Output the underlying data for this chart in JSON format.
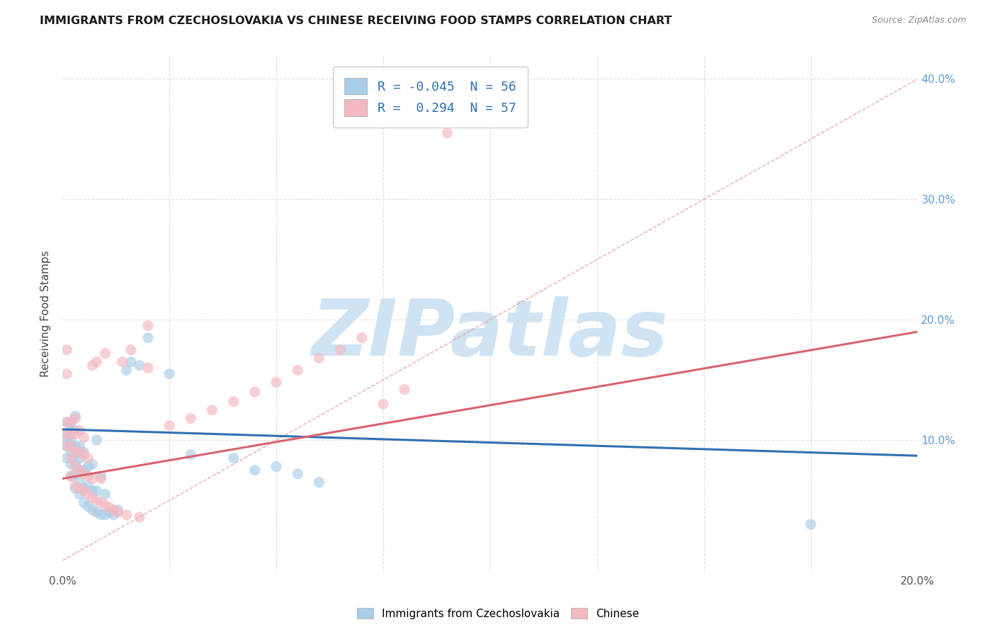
{
  "title": "IMMIGRANTS FROM CZECHOSLOVAKIA VS CHINESE RECEIVING FOOD STAMPS CORRELATION CHART",
  "source": "Source: ZipAtlas.com",
  "ylabel": "Receiving Food Stamps",
  "xlim": [
    0.0,
    0.2
  ],
  "ylim": [
    -0.01,
    0.42
  ],
  "xticks": [
    0.0,
    0.025,
    0.05,
    0.075,
    0.1,
    0.125,
    0.15,
    0.175,
    0.2
  ],
  "yticks_right": [
    0.1,
    0.2,
    0.3,
    0.4
  ],
  "legend_labels": [
    "Immigrants from Czechoslovakia",
    "Chinese"
  ],
  "legend_r": [
    -0.045,
    0.294
  ],
  "legend_n": [
    56,
    57
  ],
  "blue_color": "#a8cde8",
  "pink_color": "#f4b8c1",
  "blue_line_color": "#3070b0",
  "pink_line_color": "#d9626e",
  "ref_line_color": "#e8a0a8",
  "legend_text_color": "#3070b0",
  "right_axis_color": "#5b9bd5",
  "watermark_color": "#c8dff0",
  "grid_color": "#e0e0e0",
  "background_color": "#ffffff",
  "blue_trend_y0": 0.109,
  "blue_trend_y1": 0.087,
  "pink_trend_y0": 0.068,
  "pink_trend_y1": 0.19,
  "ref_line_x": [
    0.0,
    0.2
  ],
  "ref_line_y": [
    0.0,
    0.4
  ],
  "blue_scatter_x": [
    0.001,
    0.001,
    0.001,
    0.001,
    0.001,
    0.002,
    0.002,
    0.002,
    0.002,
    0.002,
    0.002,
    0.002,
    0.003,
    0.003,
    0.003,
    0.003,
    0.003,
    0.003,
    0.003,
    0.004,
    0.004,
    0.004,
    0.004,
    0.004,
    0.005,
    0.005,
    0.005,
    0.005,
    0.006,
    0.006,
    0.006,
    0.007,
    0.007,
    0.007,
    0.008,
    0.008,
    0.008,
    0.009,
    0.009,
    0.01,
    0.01,
    0.011,
    0.012,
    0.013,
    0.015,
    0.016,
    0.018,
    0.02,
    0.025,
    0.03,
    0.04,
    0.045,
    0.05,
    0.055,
    0.06,
    0.175
  ],
  "blue_scatter_y": [
    0.085,
    0.095,
    0.1,
    0.105,
    0.115,
    0.07,
    0.08,
    0.09,
    0.095,
    0.1,
    0.108,
    0.115,
    0.06,
    0.072,
    0.08,
    0.088,
    0.095,
    0.108,
    0.12,
    0.055,
    0.065,
    0.075,
    0.085,
    0.095,
    0.048,
    0.06,
    0.075,
    0.09,
    0.045,
    0.062,
    0.078,
    0.042,
    0.058,
    0.08,
    0.04,
    0.058,
    0.1,
    0.038,
    0.07,
    0.038,
    0.055,
    0.04,
    0.038,
    0.042,
    0.158,
    0.165,
    0.162,
    0.185,
    0.155,
    0.088,
    0.085,
    0.075,
    0.078,
    0.072,
    0.065,
    0.03
  ],
  "pink_scatter_x": [
    0.001,
    0.001,
    0.001,
    0.001,
    0.001,
    0.002,
    0.002,
    0.002,
    0.002,
    0.002,
    0.003,
    0.003,
    0.003,
    0.003,
    0.003,
    0.004,
    0.004,
    0.004,
    0.004,
    0.005,
    0.005,
    0.005,
    0.005,
    0.006,
    0.006,
    0.006,
    0.007,
    0.007,
    0.007,
    0.008,
    0.008,
    0.009,
    0.009,
    0.01,
    0.01,
    0.011,
    0.012,
    0.013,
    0.014,
    0.015,
    0.016,
    0.018,
    0.02,
    0.02,
    0.025,
    0.03,
    0.035,
    0.04,
    0.045,
    0.05,
    0.055,
    0.06,
    0.065,
    0.07,
    0.075,
    0.08,
    0.09
  ],
  "pink_scatter_y": [
    0.095,
    0.105,
    0.115,
    0.155,
    0.175,
    0.07,
    0.085,
    0.095,
    0.105,
    0.115,
    0.062,
    0.078,
    0.09,
    0.105,
    0.118,
    0.06,
    0.075,
    0.09,
    0.108,
    0.058,
    0.072,
    0.088,
    0.102,
    0.055,
    0.07,
    0.085,
    0.052,
    0.068,
    0.162,
    0.05,
    0.165,
    0.048,
    0.068,
    0.046,
    0.172,
    0.044,
    0.042,
    0.04,
    0.165,
    0.038,
    0.175,
    0.036,
    0.195,
    0.16,
    0.112,
    0.118,
    0.125,
    0.132,
    0.14,
    0.148,
    0.158,
    0.168,
    0.175,
    0.185,
    0.13,
    0.142,
    0.355
  ]
}
